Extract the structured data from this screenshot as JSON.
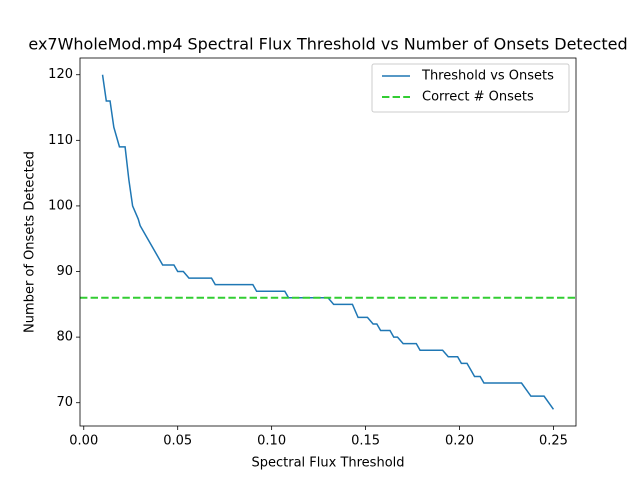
{
  "chart_data": {
    "type": "line",
    "title": "ex7WholeMod.mp4 Spectral Flux Threshold vs Number of Onsets Detected",
    "x_label": "Spectral Flux Threshold",
    "y_label": "Number of Onsets Detected",
    "xlim": [
      -0.002,
      0.262
    ],
    "ylim": [
      66.45,
      122.55
    ],
    "xticks": [
      {
        "value": 0,
        "label": "0.00"
      },
      {
        "value": 0.05,
        "label": "0.05"
      },
      {
        "value": 0.1,
        "label": "0.10"
      },
      {
        "value": 0.15,
        "label": "0.15"
      },
      {
        "value": 0.2,
        "label": "0.20"
      },
      {
        "value": 0.25,
        "label": "0.25"
      }
    ],
    "yticks": [
      70,
      80,
      90,
      100,
      110,
      120
    ],
    "legend": "upper right",
    "series": [
      {
        "name": "Threshold vs Onsets",
        "color": "#1f77b4",
        "x": [
          0.01,
          0.012,
          0.014,
          0.016,
          0.019,
          0.022,
          0.024,
          0.026,
          0.029,
          0.03,
          0.034,
          0.042,
          0.048,
          0.05,
          0.053,
          0.056,
          0.068,
          0.07,
          0.09,
          0.092,
          0.107,
          0.109,
          0.13,
          0.133,
          0.143,
          0.146,
          0.151,
          0.154,
          0.156,
          0.158,
          0.163,
          0.165,
          0.167,
          0.17,
          0.177,
          0.179,
          0.191,
          0.194,
          0.199,
          0.201,
          0.204,
          0.206,
          0.208,
          0.211,
          0.213,
          0.233,
          0.238,
          0.245,
          0.25
        ],
        "values": [
          120,
          116,
          116,
          112,
          109,
          109,
          104,
          100,
          98,
          97,
          95,
          91,
          91,
          90,
          90,
          89,
          89,
          88,
          88,
          87,
          87,
          86,
          86,
          85,
          85,
          83,
          83,
          82,
          82,
          81,
          81,
          80,
          80,
          79,
          79,
          78,
          78,
          77,
          77,
          76,
          76,
          75,
          74,
          74,
          73,
          73,
          71,
          71,
          69
        ]
      },
      {
        "name": "Correct # Onsets",
        "color": "#32cd32",
        "y": 86
      }
    ]
  }
}
